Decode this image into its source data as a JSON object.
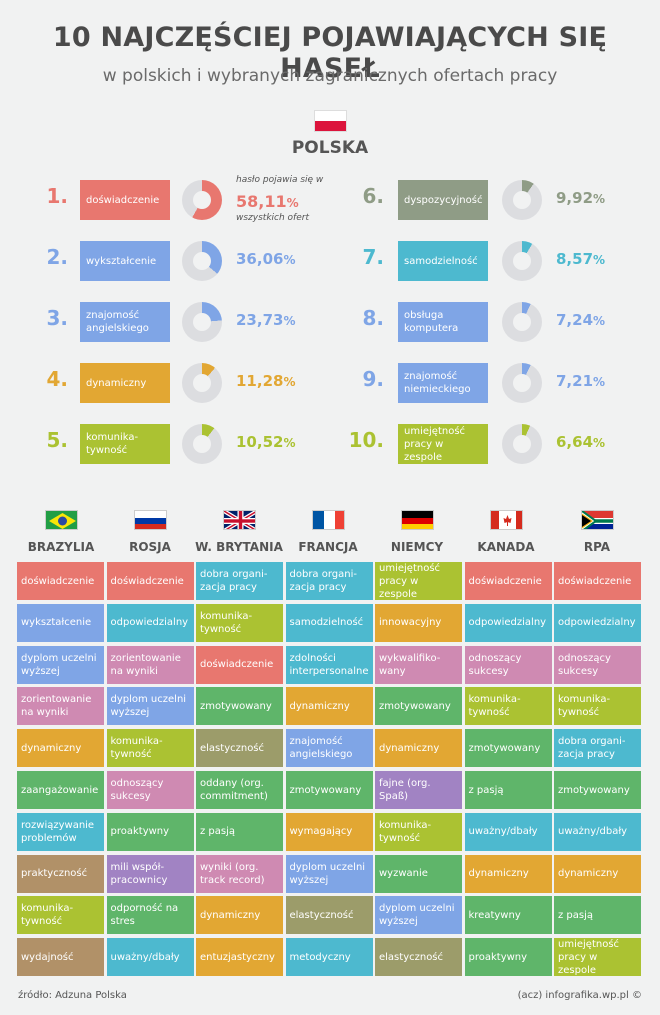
{
  "header": {
    "title": "10 NAJCZĘŚCIEJ POJAWIAJĄCYCH SIĘ HASEŁ",
    "subtitle": "w polskich i wybranych zagranicznych ofertach pracy",
    "country": "POLSKA"
  },
  "note": {
    "before": "hasło pojawia się w",
    "after": "wszystkich ofert"
  },
  "colors": {
    "red": "#e8776f",
    "blue": "#7fa5e6",
    "orange": "#e2a733",
    "lime": "#abc232",
    "gray": "#8f9c86",
    "teal": "#4db9cf",
    "pink": "#cf8ab2",
    "green": "#5fb56a",
    "purple": "#a183c3",
    "brown": "#b19168",
    "olive": "#9c9c6a",
    "track": "#dcdde0"
  },
  "ranking": [
    {
      "rank": "1.",
      "label": "doświadczenie",
      "pct": "58,11",
      "value": 58.11,
      "color": "red"
    },
    {
      "rank": "2.",
      "label": "wykształcenie",
      "pct": "36,06",
      "value": 36.06,
      "color": "blue"
    },
    {
      "rank": "3.",
      "label": "znajomość angielskiego",
      "pct": "23,73",
      "value": 23.73,
      "color": "blue"
    },
    {
      "rank": "4.",
      "label": "dynamiczny",
      "pct": "11,28",
      "value": 11.28,
      "color": "orange"
    },
    {
      "rank": "5.",
      "label": "komunika-tywność",
      "pct": "10,52",
      "value": 10.52,
      "color": "lime"
    },
    {
      "rank": "6.",
      "label": "dyspozycyjność",
      "pct": "9,92",
      "value": 9.92,
      "color": "gray"
    },
    {
      "rank": "7.",
      "label": "samodzielność",
      "pct": "8,57",
      "value": 8.57,
      "color": "teal"
    },
    {
      "rank": "8.",
      "label": "obsługa komputera",
      "pct": "7,24",
      "value": 7.24,
      "color": "blue"
    },
    {
      "rank": "9.",
      "label": "znajomość niemieckiego",
      "pct": "7,21",
      "value": 7.21,
      "color": "blue"
    },
    {
      "rank": "10.",
      "label": "umiejętność pracy w zespole",
      "pct": "6,64",
      "value": 6.64,
      "color": "lime"
    }
  ],
  "percent_sign": "%",
  "countries": [
    {
      "name": "BRAZYLIA",
      "flag": "brazil-flag",
      "cells": [
        {
          "text": "doświadczenie",
          "color": "red"
        },
        {
          "text": "wykształcenie",
          "color": "blue"
        },
        {
          "text": "dyplom uczelni wyższej",
          "color": "blue"
        },
        {
          "text": "zorientowanie na wyniki",
          "color": "pink"
        },
        {
          "text": "dynamiczny",
          "color": "orange"
        },
        {
          "text": "zaangażowanie",
          "color": "green"
        },
        {
          "text": "rozwiązywanie problemów",
          "color": "teal"
        },
        {
          "text": "praktyczność",
          "color": "brown"
        },
        {
          "text": "komunika-tywność",
          "color": "lime"
        },
        {
          "text": "wydajność",
          "color": "brown"
        }
      ]
    },
    {
      "name": "ROSJA",
      "flag": "russia-flag",
      "cells": [
        {
          "text": "doświadczenie",
          "color": "red"
        },
        {
          "text": "odpowiedzialny",
          "color": "teal"
        },
        {
          "text": "zorientowanie na wyniki",
          "color": "pink"
        },
        {
          "text": "dyplom uczelni wyższej",
          "color": "blue"
        },
        {
          "text": "komunika-tywność",
          "color": "lime"
        },
        {
          "text": "odnoszący sukcesy",
          "color": "pink"
        },
        {
          "text": "proaktywny",
          "color": "green"
        },
        {
          "text": "mili współ-pracownicy",
          "color": "purple"
        },
        {
          "text": "odporność na stres",
          "color": "green"
        },
        {
          "text": "uważny/dbały",
          "color": "teal"
        }
      ]
    },
    {
      "name": "W. BRYTANIA",
      "flag": "uk-flag",
      "cells": [
        {
          "text": "dobra organi-zacja pracy",
          "color": "teal"
        },
        {
          "text": "komunika-tywność",
          "color": "lime"
        },
        {
          "text": "doświadczenie",
          "color": "red"
        },
        {
          "text": "zmotywowany",
          "color": "green"
        },
        {
          "text": "elastyczność",
          "color": "olive"
        },
        {
          "text": "oddany (org. commitment)",
          "color": "green"
        },
        {
          "text": "z pasją",
          "color": "green"
        },
        {
          "text": "wyniki (org. track record)",
          "color": "pink"
        },
        {
          "text": "dynamiczny",
          "color": "orange"
        },
        {
          "text": "entuzjastyczny",
          "color": "orange"
        }
      ]
    },
    {
      "name": "FRANCJA",
      "flag": "france-flag",
      "cells": [
        {
          "text": "dobra organi-zacja pracy",
          "color": "teal"
        },
        {
          "text": "samodzielność",
          "color": "teal"
        },
        {
          "text": "zdolności interpersonalne",
          "color": "teal"
        },
        {
          "text": "dynamiczny",
          "color": "orange"
        },
        {
          "text": "znajomość angielskiego",
          "color": "blue"
        },
        {
          "text": "zmotywowany",
          "color": "green"
        },
        {
          "text": "wymagający",
          "color": "orange"
        },
        {
          "text": "dyplom uczelni wyższej",
          "color": "blue"
        },
        {
          "text": "elastyczność",
          "color": "olive"
        },
        {
          "text": "metodyczny",
          "color": "teal"
        }
      ]
    },
    {
      "name": "NIEMCY",
      "flag": "germany-flag",
      "cells": [
        {
          "text": "umiejętność pracy w zespole",
          "color": "lime"
        },
        {
          "text": "innowacyjny",
          "color": "orange"
        },
        {
          "text": "wykwalifiko-wany",
          "color": "pink"
        },
        {
          "text": "zmotywowany",
          "color": "green"
        },
        {
          "text": "dynamiczny",
          "color": "orange"
        },
        {
          "text": "fajne (org. Spaß)",
          "color": "purple"
        },
        {
          "text": "komunika-tywność",
          "color": "lime"
        },
        {
          "text": "wyzwanie",
          "color": "green"
        },
        {
          "text": "dyplom uczelni wyższej",
          "color": "blue"
        },
        {
          "text": "elastyczność",
          "color": "olive"
        }
      ]
    },
    {
      "name": "KANADA",
      "flag": "canada-flag",
      "cells": [
        {
          "text": "doświadczenie",
          "color": "red"
        },
        {
          "text": "odpowiedzialny",
          "color": "teal"
        },
        {
          "text": "odnoszący sukcesy",
          "color": "pink"
        },
        {
          "text": "komunika-tywność",
          "color": "lime"
        },
        {
          "text": "zmotywowany",
          "color": "green"
        },
        {
          "text": "z pasją",
          "color": "green"
        },
        {
          "text": "uważny/dbały",
          "color": "teal"
        },
        {
          "text": "dynamiczny",
          "color": "orange"
        },
        {
          "text": "kreatywny",
          "color": "green"
        },
        {
          "text": "proaktywny",
          "color": "green"
        }
      ]
    },
    {
      "name": "RPA",
      "flag": "south-africa-flag",
      "cells": [
        {
          "text": "doświadczenie",
          "color": "red"
        },
        {
          "text": "odpowiedzialny",
          "color": "teal"
        },
        {
          "text": "odnoszący sukcesy",
          "color": "pink"
        },
        {
          "text": "komunika-tywność",
          "color": "lime"
        },
        {
          "text": "dobra organi-zacja pracy",
          "color": "teal"
        },
        {
          "text": "zmotywowany",
          "color": "green"
        },
        {
          "text": "uważny/dbały",
          "color": "teal"
        },
        {
          "text": "dynamiczny",
          "color": "orange"
        },
        {
          "text": "z pasją",
          "color": "green"
        },
        {
          "text": "umiejętność pracy w zespole",
          "color": "lime"
        }
      ]
    }
  ],
  "footer": {
    "source": "źródło: Adzuna Polska",
    "credit": "(acz) infografika.wp.pl ©"
  }
}
